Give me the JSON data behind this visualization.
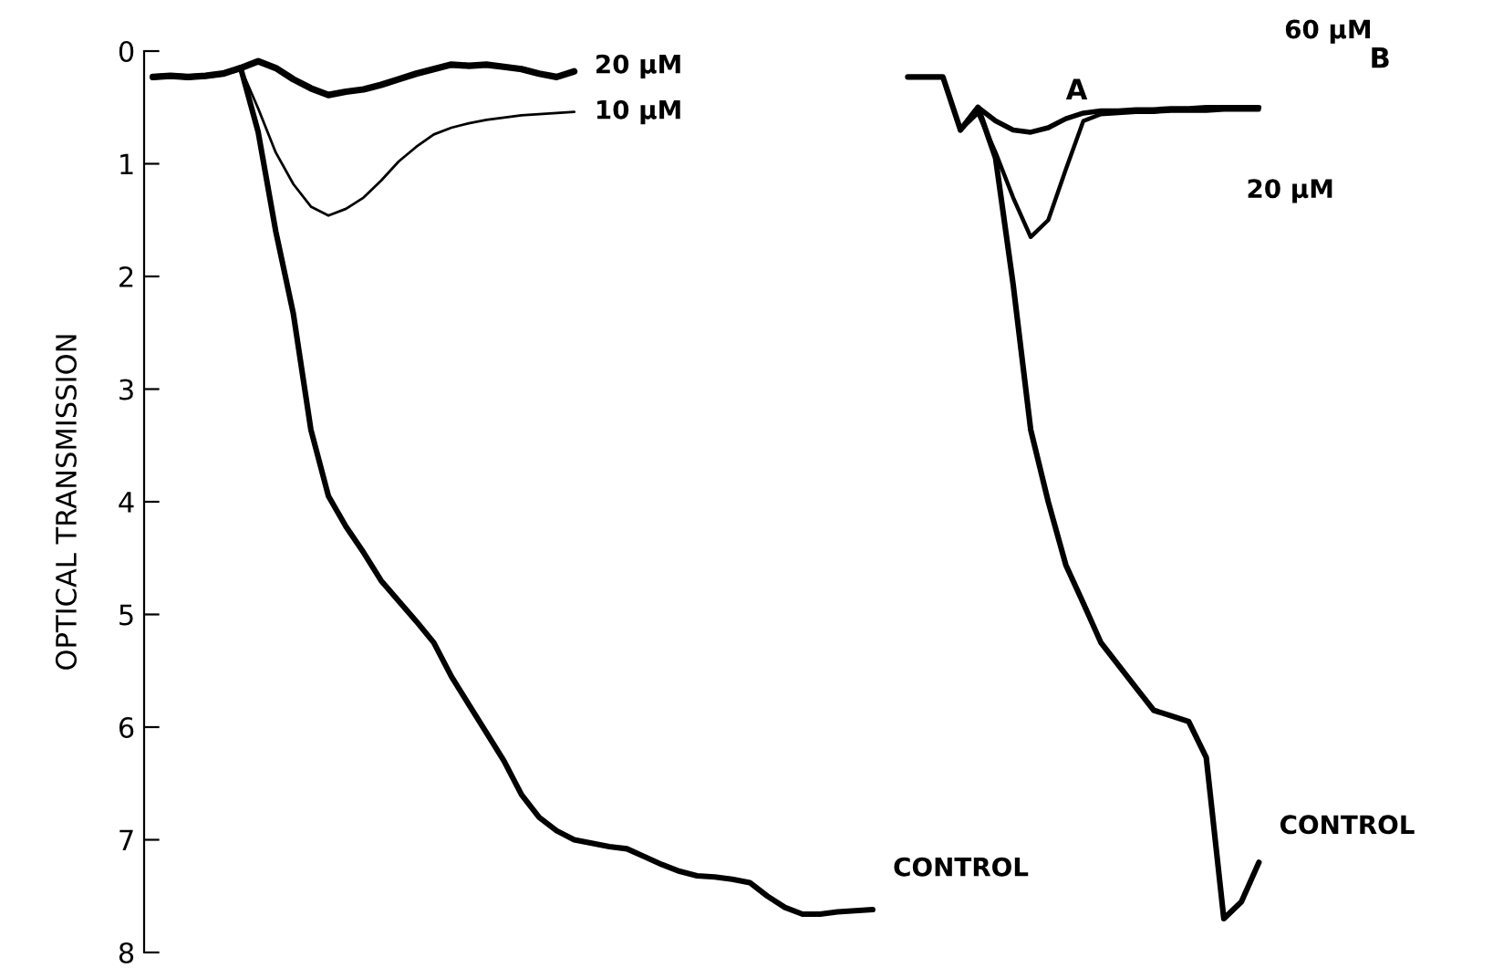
{
  "chart_data": {
    "type": "line",
    "ylabel": "OPTICAL TRANSMISSION",
    "ylim": [
      8,
      0
    ],
    "yticks": [
      0,
      1,
      2,
      3,
      4,
      5,
      6,
      7,
      8
    ],
    "tick_labels": "y",
    "annotations": [
      "A",
      "B"
    ],
    "categories": [
      null,
      null,
      null,
      null,
      null,
      null,
      null,
      null,
      null,
      null,
      null,
      null,
      null,
      null,
      null,
      null,
      null,
      null,
      null,
      null,
      null,
      null,
      null,
      null,
      null,
      null,
      null,
      null,
      null,
      null,
      null,
      null,
      null,
      null,
      null,
      null,
      null,
      null,
      null,
      null,
      null,
      null,
      null,
      null,
      null,
      null,
      null,
      null,
      null,
      null,
      null,
      null,
      null,
      null,
      null,
      null,
      null,
      null,
      null,
      null,
      null,
      null,
      null,
      null
    ],
    "series": [
      {
        "name": "20 µM",
        "color": "#000000",
        "values": [
          0.23,
          0.22,
          0.23,
          0.22,
          0.2,
          0.15,
          0.09,
          0.15,
          0.25,
          0.33,
          0.39,
          0.36,
          0.34,
          0.3,
          0.25,
          0.2,
          0.16,
          0.12,
          0.13,
          0.12,
          0.14,
          0.16,
          0.2,
          0.23,
          0.18,
          null,
          null,
          null,
          null,
          null,
          null,
          null,
          null,
          null,
          null,
          null,
          null,
          null,
          null,
          null,
          null,
          null,
          null,
          null,
          null,
          null,
          null,
          null,
          null,
          null,
          null,
          null,
          null,
          null,
          null,
          null,
          null,
          null,
          null,
          null,
          null,
          null,
          null,
          null
        ]
      },
      {
        "name": "10 µM",
        "color": "#000000",
        "values": [
          null,
          null,
          null,
          null,
          null,
          0.15,
          0.51,
          0.9,
          1.18,
          1.38,
          1.46,
          1.4,
          1.3,
          1.15,
          0.98,
          0.85,
          0.74,
          0.68,
          0.64,
          0.61,
          0.59,
          0.57,
          0.56,
          0.55,
          0.54,
          null,
          null,
          null,
          null,
          null,
          null,
          null,
          null,
          null,
          null,
          null,
          null,
          null,
          null,
          null,
          null,
          null,
          null,
          null,
          null,
          null,
          null,
          null,
          null,
          null,
          null,
          null,
          null,
          null,
          null,
          null,
          null,
          null,
          null,
          null,
          null,
          null,
          null,
          null
        ]
      },
      {
        "name": "CONTROL",
        "color": "#000000",
        "values": [
          0.23,
          0.22,
          0.23,
          0.22,
          0.2,
          0.15,
          0.72,
          1.6,
          2.33,
          3.36,
          3.95,
          4.22,
          4.45,
          4.7,
          4.88,
          5.06,
          5.25,
          5.55,
          5.8,
          6.05,
          6.3,
          6.6,
          6.8,
          6.92,
          7.0,
          7.03,
          7.06,
          7.08,
          7.15,
          7.22,
          7.28,
          7.32,
          7.33,
          7.35,
          7.38,
          7.5,
          7.6,
          7.66,
          7.66,
          7.64,
          7.63,
          7.62,
          null,
          null,
          null,
          null,
          null,
          null,
          null,
          null,
          null,
          null,
          null,
          null,
          null,
          null,
          null,
          null,
          null,
          null,
          null,
          null,
          null,
          null
        ]
      },
      {
        "name": "60 µM",
        "color": "#000000",
        "values": [
          null,
          null,
          null,
          null,
          null,
          null,
          null,
          null,
          null,
          null,
          null,
          null,
          null,
          null,
          null,
          null,
          null,
          null,
          null,
          null,
          null,
          null,
          null,
          null,
          null,
          null,
          null,
          null,
          null,
          null,
          null,
          null,
          null,
          null,
          null,
          null,
          null,
          null,
          null,
          null,
          null,
          null,
          null,
          null,
          null,
          null,
          0.7,
          0.5,
          0.62,
          0.7,
          0.72,
          0.68,
          0.6,
          0.55,
          0.53,
          0.53,
          0.52,
          0.52,
          0.51,
          0.51,
          0.5,
          0.5,
          0.5,
          0.5
        ]
      },
      {
        "name": "20 µM",
        "color": "#000000",
        "values": [
          null,
          null,
          null,
          null,
          null,
          null,
          null,
          null,
          null,
          null,
          null,
          null,
          null,
          null,
          null,
          null,
          null,
          null,
          null,
          null,
          null,
          null,
          null,
          null,
          null,
          null,
          null,
          null,
          null,
          null,
          null,
          null,
          null,
          null,
          null,
          null,
          null,
          null,
          null,
          null,
          null,
          null,
          null,
          null,
          null,
          null,
          0.7,
          0.55,
          0.9,
          1.3,
          1.65,
          1.5,
          1.05,
          0.62,
          0.56,
          0.55,
          0.54,
          0.54,
          0.53,
          0.53,
          0.53,
          0.52,
          0.52,
          0.52
        ]
      },
      {
        "name": "CONTROL",
        "color": "#000000",
        "values": [
          null,
          null,
          null,
          null,
          null,
          null,
          null,
          null,
          null,
          null,
          null,
          null,
          null,
          null,
          null,
          null,
          null,
          null,
          null,
          null,
          null,
          null,
          null,
          null,
          null,
          null,
          null,
          null,
          null,
          null,
          null,
          null,
          null,
          null,
          null,
          null,
          null,
          null,
          null,
          null,
          null,
          null,
          null,
          0.23,
          0.23,
          0.23,
          0.7,
          0.5,
          0.95,
          2.07,
          3.36,
          4.0,
          4.56,
          4.9,
          5.25,
          5.45,
          5.65,
          5.85,
          5.9,
          5.95,
          6.27,
          7.7,
          7.55,
          7.2
        ]
      }
    ]
  }
}
